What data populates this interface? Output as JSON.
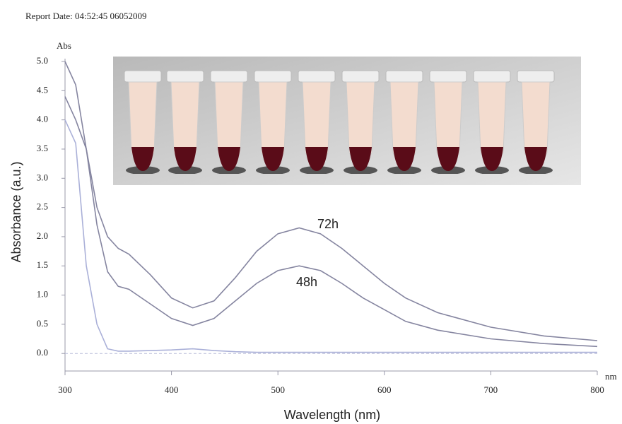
{
  "chart_data": {
    "type": "line",
    "report": "Report Date: 04:52:45 06052009",
    "y_unit": "Abs",
    "x_unit": "nm",
    "y_label": "Absorbance (a.u.)",
    "x_label": "Wavelength (nm)",
    "x": [
      300,
      310,
      320,
      330,
      340,
      350,
      360,
      380,
      400,
      420,
      440,
      460,
      480,
      500,
      520,
      540,
      560,
      580,
      600,
      620,
      650,
      700,
      750,
      800
    ],
    "series": [
      {
        "name": "72h",
        "color": "#8585a0",
        "values": [
          5.0,
          4.6,
          3.5,
          2.5,
          2.0,
          1.8,
          1.7,
          1.35,
          0.95,
          0.78,
          0.9,
          1.3,
          1.75,
          2.05,
          2.15,
          2.05,
          1.8,
          1.5,
          1.2,
          0.95,
          0.7,
          0.45,
          0.3,
          0.22
        ]
      },
      {
        "name": "48h",
        "color": "#8585a0",
        "values": [
          4.4,
          4.0,
          3.5,
          2.2,
          1.4,
          1.15,
          1.1,
          0.85,
          0.6,
          0.48,
          0.6,
          0.9,
          1.2,
          1.42,
          1.5,
          1.42,
          1.2,
          0.95,
          0.75,
          0.55,
          0.4,
          0.25,
          0.17,
          0.12
        ]
      },
      {
        "color": "#aab0d8",
        "values": [
          4.0,
          3.6,
          1.5,
          0.5,
          0.08,
          0.04,
          0.04,
          0.05,
          0.06,
          0.08,
          0.05,
          0.03,
          0.02,
          0.02,
          0.02,
          0.02,
          0.02,
          0.02,
          0.02,
          0.02,
          0.02,
          0.02,
          0.02,
          0.02
        ]
      }
    ],
    "xlim": [
      300,
      800
    ],
    "xticks": [
      300,
      400,
      500,
      600,
      700,
      800
    ],
    "ylim": [
      -0.3,
      5.0
    ],
    "yticks": [
      {
        "value": 0,
        "label": "0.0"
      },
      {
        "value": 0.5,
        "label": "0.5"
      },
      {
        "value": 1,
        "label": "1.0"
      },
      {
        "value": 1.5,
        "label": "1.5"
      },
      {
        "value": 2,
        "label": "2.0"
      },
      {
        "value": 2.5,
        "label": "2.5"
      },
      {
        "value": 3,
        "label": "3.0"
      },
      {
        "value": 3.5,
        "label": "3.5"
      },
      {
        "value": 4,
        "label": "4.0"
      },
      {
        "value": 4.5,
        "label": "4.5"
      },
      {
        "value": 5,
        "label": "5.0"
      }
    ]
  }
}
